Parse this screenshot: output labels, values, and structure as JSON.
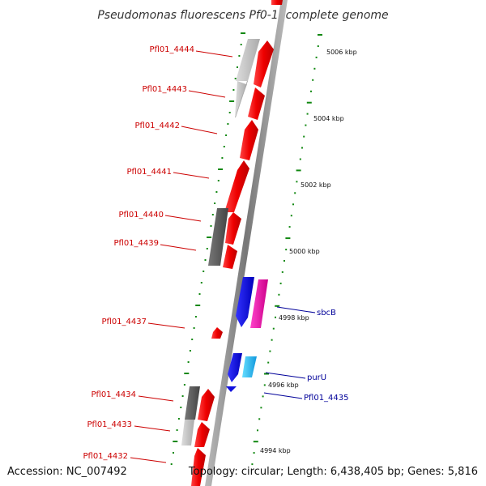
{
  "title": "Pseudomonas fluorescens Pf0-1, complete genome",
  "footer": {
    "accession": "Accession: NC_007492",
    "topology": "Topology: circular; Length: 6,438,405 bp; Genes: 5,816"
  },
  "scale_labels": [
    "5006 kbp",
    "5004 kbp",
    "5002 kbp",
    "5000 kbp",
    "4998 kbp",
    "4996 kbp",
    "4994 kbp"
  ],
  "left_gene_labels": [
    "Pfl01_4444",
    "Pfl01_4443",
    "Pfl01_4442",
    "Pfl01_4441",
    "Pfl01_4440",
    "Pfl01_4439",
    "Pfl01_4437",
    "Pfl01_4434",
    "Pfl01_4433",
    "Pfl01_4432"
  ],
  "right_gene_labels": [
    "sbcB",
    "purU",
    "Pfl01_4435"
  ],
  "colors": {
    "gene_red": "#ee1111",
    "gene_dark_gray": "#555555",
    "gene_light_gray": "#bbbbbb",
    "gene_blue": "#1111dd",
    "gene_magenta": "#dd1199",
    "gene_cyan": "#22bbee",
    "ticks": "#118811",
    "label_red": "#cc0000",
    "label_blue": "#000099",
    "backbone": "#888888"
  }
}
